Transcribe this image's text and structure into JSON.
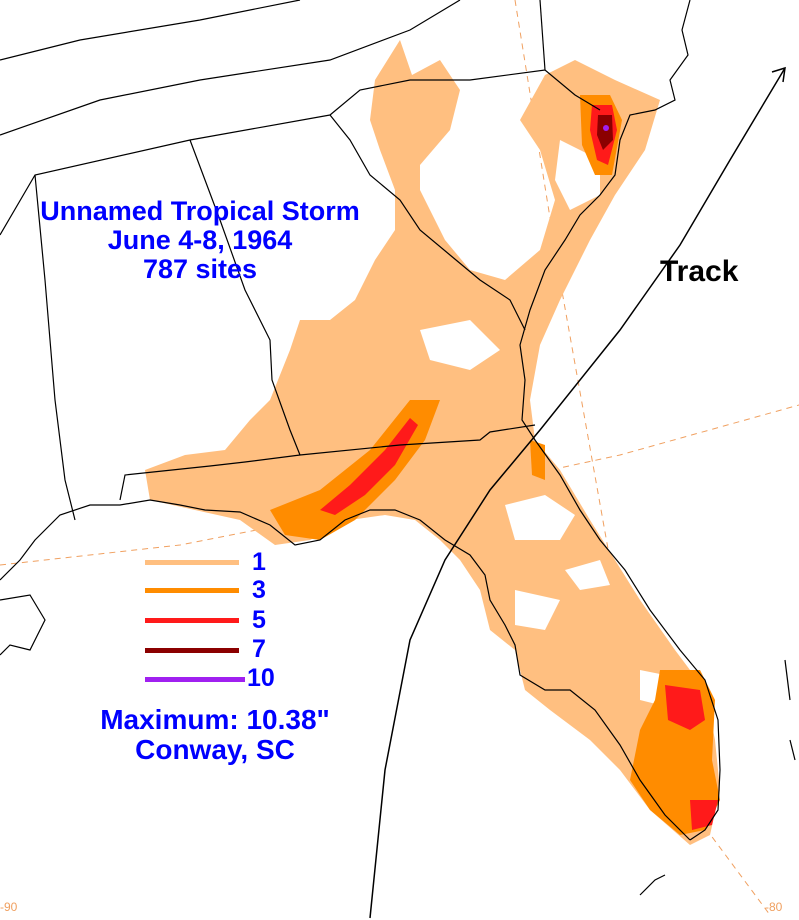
{
  "title": {
    "line1": "Unnamed Tropical Storm",
    "line2": "June 4-8, 1964",
    "line3": "787 sites"
  },
  "track_label": "Track",
  "legend": {
    "items": [
      {
        "value": "1",
        "color": "#ffbf80"
      },
      {
        "value": "3",
        "color": "#ff8c00"
      },
      {
        "value": "5",
        "color": "#ff1a1a"
      },
      {
        "value": "7",
        "color": "#8b0000"
      },
      {
        "value": "10",
        "color": "#a020f0"
      }
    ]
  },
  "maximum": {
    "line1": "Maximum:  10.38\"",
    "line2": "Conway, SC"
  },
  "graticule_labels": {
    "left": "-90",
    "right": "-80"
  },
  "colors": {
    "text_blue": "#0000ff",
    "track_line": "#000000",
    "boundary": "#000000",
    "graticule": "#f0a060"
  }
}
